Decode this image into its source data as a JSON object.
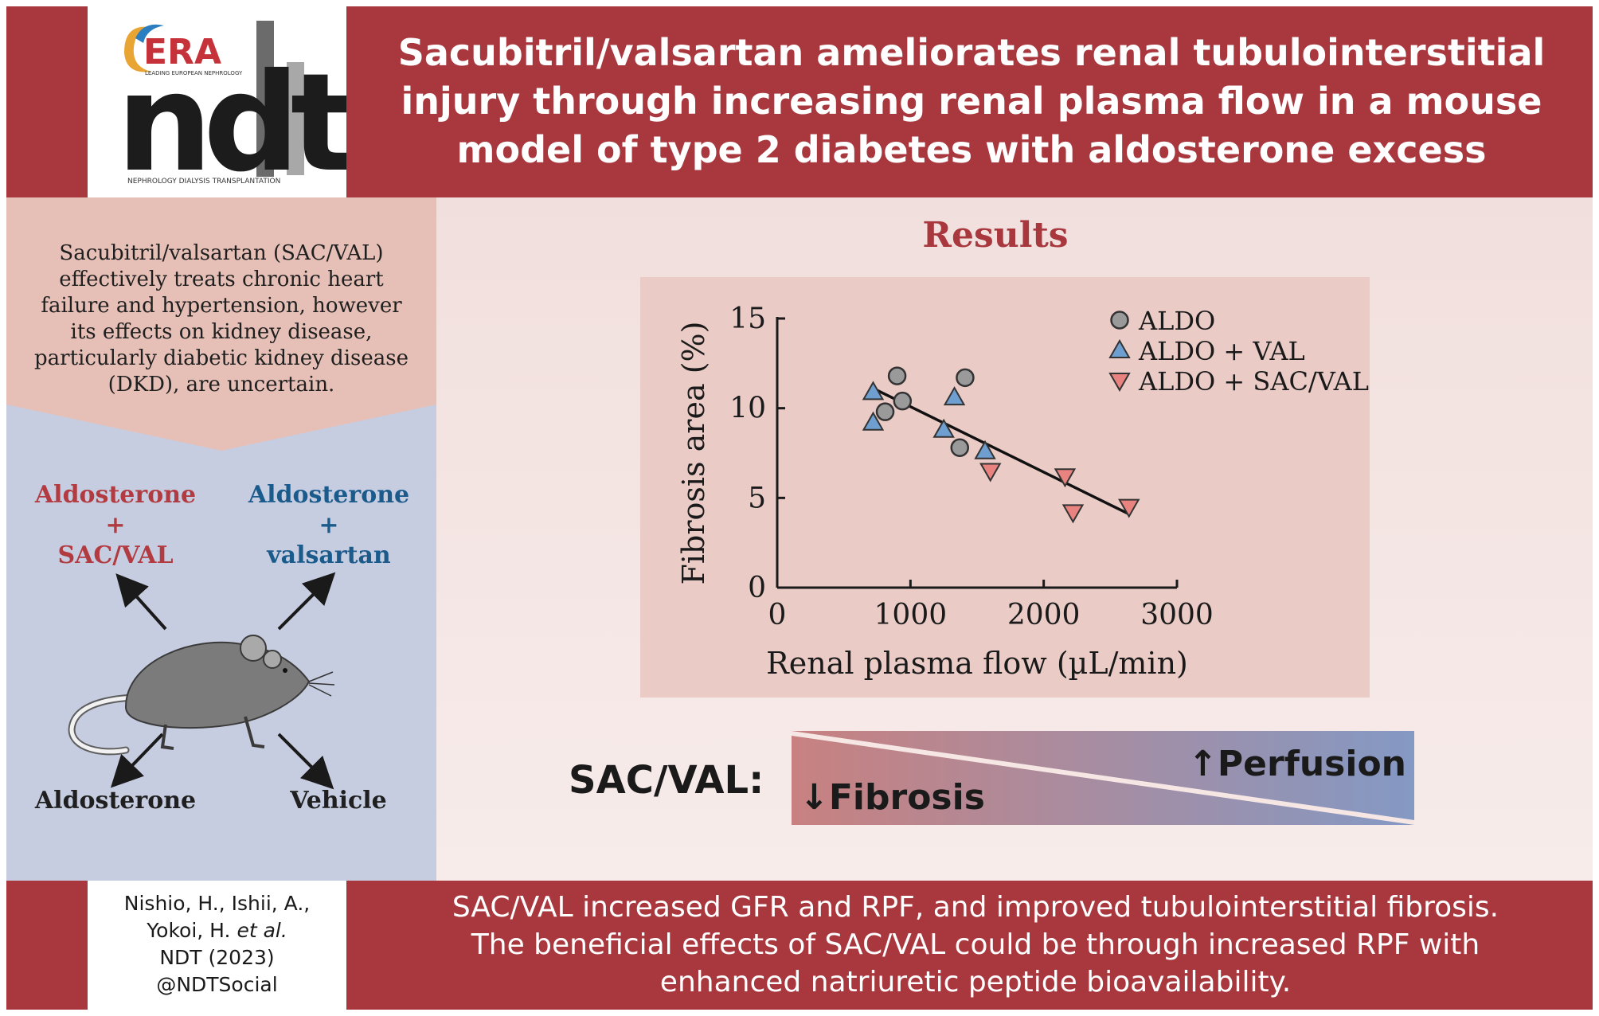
{
  "logo": {
    "era": "ERA",
    "era_tagline": "LEADING EUROPEAN NEPHROLOGY",
    "ndt": "ndt",
    "journal_name": "NEPHROLOGY DIALYSIS TRANSPLANTATION"
  },
  "header": {
    "title_lines": [
      "Sacubitril/valsartan ameliorates renal tubulointerstitial",
      "injury through increasing renal plasma flow in a mouse",
      "model of type 2 diabetes with aldosterone excess"
    ]
  },
  "intro": {
    "lines": [
      "Sacubitril/valsartan (SAC/VAL)",
      "effectively treats chronic heart",
      "failure and hypertension, however",
      "its effects on kidney disease,",
      "particularly diabetic kidney disease",
      "(DKD), are uncertain."
    ]
  },
  "groups": {
    "top_left": [
      "Aldosterone",
      "+",
      "SAC/VAL"
    ],
    "top_right": [
      "Aldosterone",
      "+",
      "valsartan"
    ],
    "bottom_left": "Aldosterone",
    "bottom_right": "Vehicle"
  },
  "results": {
    "title": "Results"
  },
  "chart_data": {
    "type": "scatter",
    "xlabel": "Renal plasma flow (µL/min)",
    "ylabel": "Fibrosis area (%)",
    "xlim": [
      0,
      3000
    ],
    "ylim": [
      0,
      15
    ],
    "xticks": [
      0,
      1000,
      2000,
      3000
    ],
    "yticks": [
      0,
      5,
      10,
      15
    ],
    "legend_position": "top-right",
    "series": [
      {
        "name": "ALDO",
        "marker": "circle",
        "color": "#9a9a9a",
        "points": [
          [
            900,
            11.8
          ],
          [
            940,
            10.4
          ],
          [
            810,
            9.8
          ],
          [
            1410,
            11.7
          ],
          [
            1370,
            7.8
          ]
        ]
      },
      {
        "name": "ALDO + VAL",
        "marker": "triangle-up",
        "color": "#6e9fd0",
        "points": [
          [
            720,
            10.9
          ],
          [
            720,
            9.2
          ],
          [
            1250,
            8.8
          ],
          [
            1330,
            10.6
          ],
          [
            1560,
            7.6
          ]
        ]
      },
      {
        "name": "ALDO + SAC/VAL",
        "marker": "triangle-down",
        "color": "#e8837f",
        "points": [
          [
            1600,
            6.5
          ],
          [
            2160,
            6.2
          ],
          [
            2220,
            4.2
          ],
          [
            2640,
            4.5
          ]
        ]
      }
    ],
    "trendline": {
      "x": [
        750,
        2640
      ],
      "y": [
        11.0,
        4.1
      ]
    }
  },
  "effect_bar": {
    "label": "SAC/VAL:",
    "left_text": "↓Fibrosis",
    "right_text": "↑Perfusion"
  },
  "citation": {
    "lines": [
      "Nishio, H., Ishii, A.,",
      "Yokoi, H. ",
      "et al.",
      "NDT (2023)",
      "@NDTSocial"
    ]
  },
  "conclusion": {
    "lines": [
      "SAC/VAL increased GFR and RPF, and improved tubulointerstitial fibrosis.",
      "The beneficial effects of SAC/VAL could be through increased RPF with",
      "enhanced natriuretic peptide bioavailability."
    ]
  },
  "colors": {
    "brand_red": "#a8383e",
    "accent_blue": "#1b5b8c",
    "aldo_grey": "#9a9a9a",
    "val_blue": "#6e9fd0",
    "sacval_red": "#e8837f"
  }
}
